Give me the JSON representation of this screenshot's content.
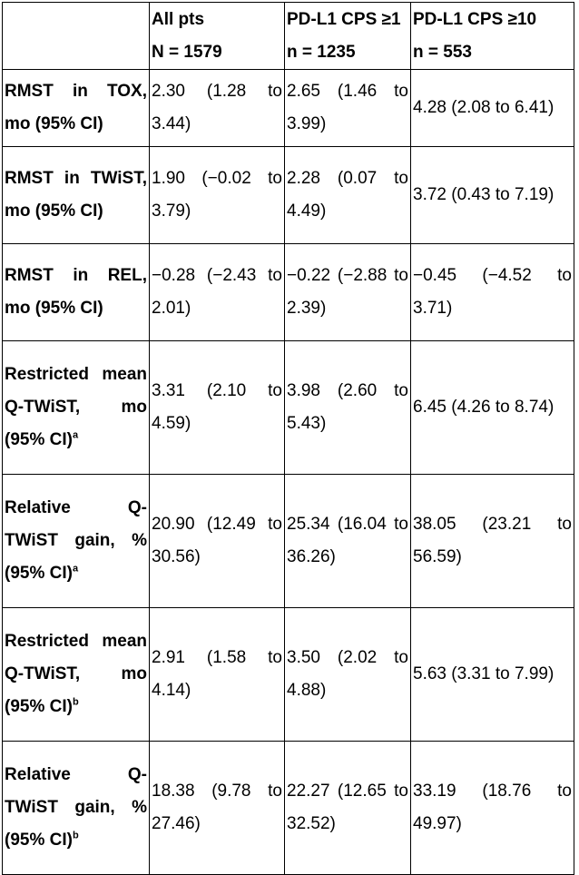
{
  "header": {
    "col0": "",
    "col1_line1": "All pts",
    "col1_line2": "N = 1579",
    "col2_line1": "PD-L1 CPS ≥1",
    "col2_line2": "n = 1235",
    "col3_line1": "PD-L1 CPS ≥10",
    "col3_line2": "n = 553"
  },
  "rows": [
    {
      "label": "RMST in TOX, mo (95% CI)",
      "sup": "",
      "all": "2.30 (1.28 to 3.44)",
      "cps1": "2.65 (1.46 to 3.99)",
      "cps10": "4.28 (2.08 to 6.41)"
    },
    {
      "label": "RMST in TWiST, mo (95% CI)",
      "sup": "",
      "all": "1.90 (−0.02 to 3.79)",
      "cps1": "2.28 (0.07 to 4.49)",
      "cps10": "3.72 (0.43 to 7.19)"
    },
    {
      "label": "RMST in REL, mo (95% CI)",
      "sup": "",
      "all": "−0.28 (−2.43 to 2.01)",
      "cps1": "−0.22 (−2.88 to 2.39)",
      "cps10": "−0.45 (−4.52 to 3.71)"
    },
    {
      "label": "Restricted mean Q-TWiST, mo (95% CI)",
      "sup": "a",
      "all": "3.31 (2.10 to 4.59)",
      "cps1": "3.98 (2.60 to 5.43)",
      "cps10": "6.45 (4.26 to 8.74)"
    },
    {
      "label": "Relative Q-TWiST gain, % (95% CI)",
      "sup": "a",
      "all": "20.90 (12.49 to 30.56)",
      "cps1": "25.34 (16.04 to 36.26)",
      "cps10": "38.05 (23.21 to 56.59)"
    },
    {
      "label": "Restricted mean Q-TWiST, mo (95% CI)",
      "sup": "b",
      "all": "2.91 (1.58 to 4.14)",
      "cps1": "3.50 (2.02 to 4.88)",
      "cps10": "5.63 (3.31 to 7.99)"
    },
    {
      "label": "Relative Q-TWiST gain, % (95% CI)",
      "sup": "b",
      "all": "18.38 (9.78 to 27.46)",
      "cps1": "22.27 (12.65 to 32.52)",
      "cps10": "33.19 (18.76 to 49.97)"
    }
  ]
}
